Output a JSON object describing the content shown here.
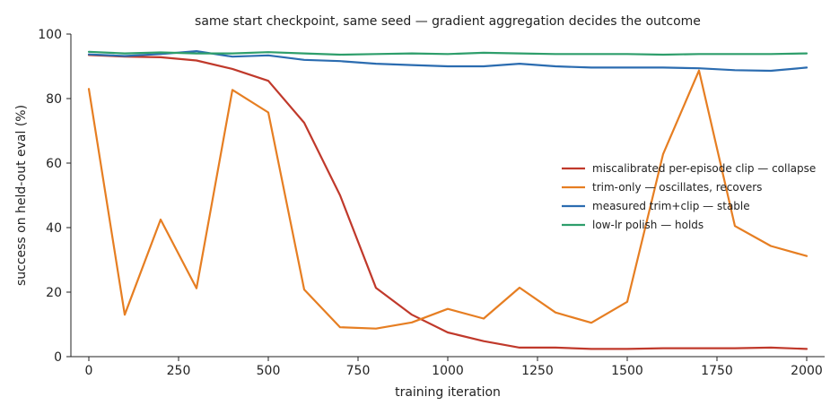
{
  "chart_data": {
    "type": "line",
    "title": "same start checkpoint, same seed — gradient aggregation decides the outcome",
    "xlabel": "training iteration",
    "ylabel": "success on held-out eval (%)",
    "xlim": [
      -50,
      2050
    ],
    "ylim": [
      0,
      100
    ],
    "xticks": [
      0,
      250,
      500,
      750,
      1000,
      1250,
      1500,
      1750,
      2000
    ],
    "yticks": [
      0,
      20,
      40,
      60,
      80,
      100
    ],
    "grid": false,
    "legend_position": "center-right",
    "x": [
      0,
      100,
      200,
      300,
      400,
      500,
      600,
      700,
      800,
      900,
      1000,
      1100,
      1200,
      1300,
      1400,
      1500,
      1600,
      1700,
      1800,
      1900,
      2000
    ],
    "series": [
      {
        "name": "miscalibrated per-episode clip — collapse",
        "color": "#c0392b",
        "values": [
          93.5,
          93.0,
          92.8,
          91.8,
          89.2,
          85.5,
          72.5,
          50.0,
          21.3,
          13.0,
          7.5,
          4.8,
          2.8,
          2.8,
          2.4,
          2.4,
          2.6,
          2.6,
          2.6,
          2.8,
          2.4
        ]
      },
      {
        "name": "trim-only — oscillates, recovers",
        "color": "#e67e22",
        "values": [
          83.0,
          13.0,
          42.5,
          21.2,
          82.7,
          75.7,
          20.8,
          9.1,
          8.7,
          10.6,
          14.8,
          11.8,
          21.4,
          13.7,
          10.5,
          17.0,
          62.8,
          88.7,
          40.5,
          34.3,
          31.2
        ]
      },
      {
        "name": "measured trim+clip — stable",
        "color": "#2b6cb0",
        "values": [
          93.7,
          93.2,
          93.8,
          94.7,
          93.0,
          93.4,
          92.0,
          91.6,
          90.8,
          90.4,
          90.0,
          90.0,
          90.8,
          90.0,
          89.6,
          89.6,
          89.6,
          89.4,
          88.8,
          88.6,
          89.6
        ]
      },
      {
        "name": "low-lr polish — holds",
        "color": "#2e9e6b",
        "values": [
          94.5,
          94.0,
          94.3,
          94.0,
          94.0,
          94.4,
          94.0,
          93.6,
          93.8,
          94.0,
          93.8,
          94.2,
          94.0,
          93.8,
          93.8,
          93.8,
          93.6,
          93.8,
          93.8,
          93.8,
          94.0
        ]
      }
    ]
  }
}
